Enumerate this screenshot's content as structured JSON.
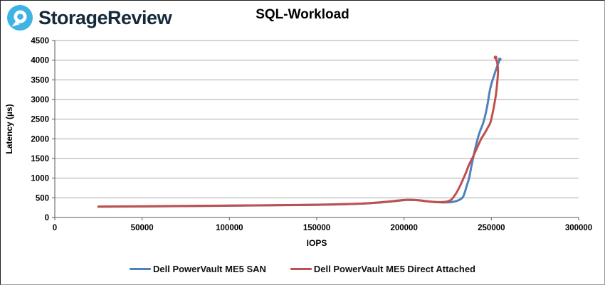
{
  "header": {
    "brand": "StorageReview",
    "logo_color": "#3eb3e4",
    "logo_text_color": "#15293a"
  },
  "chart_data": {
    "type": "line",
    "title": "SQL-Workload",
    "xlabel": "IOPS",
    "ylabel": "Latency (µs)",
    "xlim": [
      0,
      300000
    ],
    "ylim": [
      0,
      4500
    ],
    "x_ticks": [
      0,
      50000,
      100000,
      150000,
      200000,
      250000,
      300000
    ],
    "y_ticks": [
      0,
      500,
      1000,
      1500,
      2000,
      2500,
      3000,
      3500,
      4000,
      4500
    ],
    "grid": "horizontal",
    "grid_color": "#a8a8a8",
    "axis_color": "#595959",
    "legend_position": "bottom-center",
    "series": [
      {
        "name": "Dell PowerVault ME5 SAN",
        "color": "#4F81BD",
        "points": [
          [
            25000,
            272
          ],
          [
            50000,
            281
          ],
          [
            75000,
            290
          ],
          [
            100000,
            300
          ],
          [
            125000,
            310
          ],
          [
            150000,
            322
          ],
          [
            165000,
            336
          ],
          [
            178000,
            356
          ],
          [
            190000,
            396
          ],
          [
            198000,
            432
          ],
          [
            203000,
            446
          ],
          [
            209000,
            435
          ],
          [
            215000,
            404
          ],
          [
            220000,
            387
          ],
          [
            224000,
            383
          ],
          [
            228000,
            397
          ],
          [
            231000,
            434
          ],
          [
            233500,
            508
          ],
          [
            234800,
            640
          ],
          [
            236000,
            820
          ],
          [
            237200,
            990
          ],
          [
            238700,
            1330
          ],
          [
            240700,
            1740
          ],
          [
            243000,
            2130
          ],
          [
            245400,
            2410
          ],
          [
            247400,
            2780
          ],
          [
            249400,
            3290
          ],
          [
            251400,
            3590
          ],
          [
            253200,
            3830
          ],
          [
            254800,
            4020
          ]
        ]
      },
      {
        "name": "Dell PowerVault ME5 Direct Attached",
        "color": "#C0504D",
        "points": [
          [
            25000,
            278
          ],
          [
            50000,
            286
          ],
          [
            75000,
            294
          ],
          [
            100000,
            303
          ],
          [
            125000,
            313
          ],
          [
            150000,
            325
          ],
          [
            165000,
            338
          ],
          [
            178000,
            359
          ],
          [
            188000,
            392
          ],
          [
            196000,
            428
          ],
          [
            201500,
            450
          ],
          [
            207000,
            442
          ],
          [
            213000,
            411
          ],
          [
            217000,
            395
          ],
          [
            221000,
            390
          ],
          [
            224500,
            405
          ],
          [
            227000,
            452
          ],
          [
            229000,
            560
          ],
          [
            231500,
            750
          ],
          [
            233500,
            945
          ],
          [
            235500,
            1145
          ],
          [
            237200,
            1340
          ],
          [
            239500,
            1545
          ],
          [
            242000,
            1790
          ],
          [
            244200,
            2000
          ],
          [
            246200,
            2145
          ],
          [
            248000,
            2290
          ],
          [
            249500,
            2420
          ],
          [
            251200,
            2760
          ],
          [
            252600,
            3120
          ],
          [
            253400,
            3450
          ],
          [
            253800,
            3740
          ],
          [
            253400,
            3920
          ],
          [
            252900,
            4000
          ],
          [
            252400,
            4070
          ]
        ]
      }
    ]
  }
}
